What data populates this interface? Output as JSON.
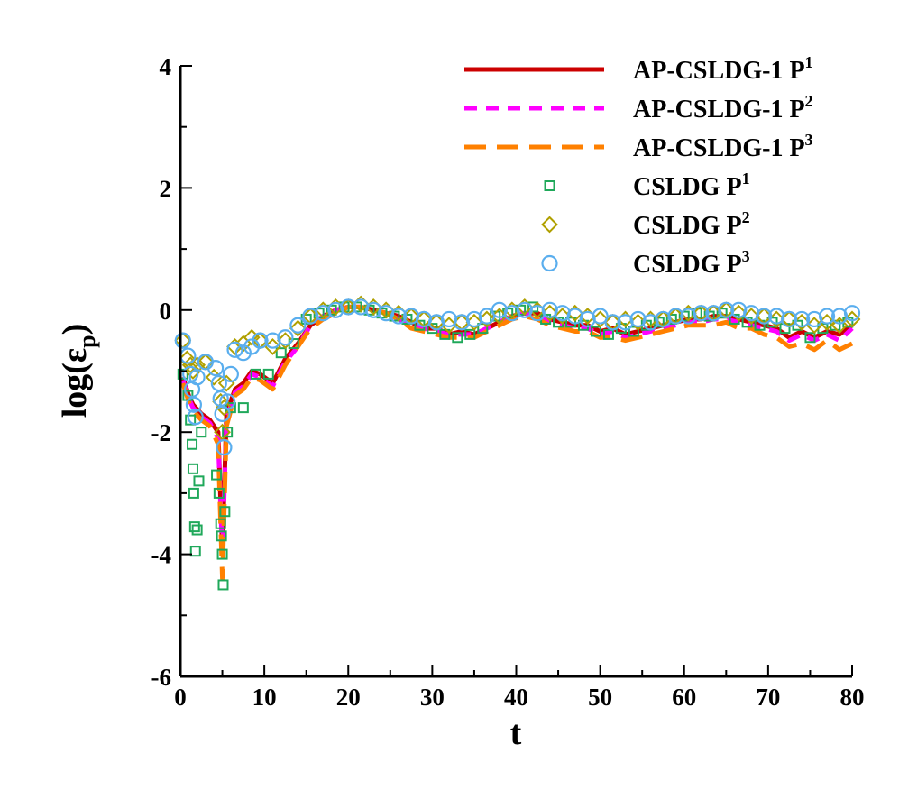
{
  "chart_data": {
    "type": "line",
    "title": "",
    "xlabel": "t",
    "ylabel": "log(εp)",
    "ylabel_parts": {
      "prefix": "log(",
      "symbol": "ε",
      "subscript": "p",
      "suffix": ")"
    },
    "xlim": [
      0,
      80
    ],
    "ylim": [
      -6,
      4
    ],
    "x_ticks": [
      0,
      10,
      20,
      30,
      40,
      50,
      60,
      70,
      80
    ],
    "x_tick_labels": [
      "0",
      "10",
      "20",
      "30",
      "40",
      "50",
      "60",
      "70",
      "80"
    ],
    "y_ticks": [
      -6,
      -4,
      -2,
      0,
      2,
      4
    ],
    "y_tick_labels": [
      "-6",
      "-4",
      "-2",
      "0",
      "2",
      "4"
    ],
    "grid": false,
    "legend_position": "top-right",
    "series": [
      {
        "name": "AP-CSLDG-1 P1",
        "label_base": "AP-CSLDG-1 P",
        "label_sup": "1",
        "style": "solid",
        "color": "#cc0000",
        "x": [
          0.3,
          1.0,
          1.5,
          2.5,
          3.5,
          4.5,
          5.0,
          5.5,
          6.5,
          7.5,
          8.5,
          9.5,
          11,
          12.5,
          14,
          15.5,
          17,
          18.5,
          20,
          21.5,
          23,
          24.5,
          26,
          27.5,
          29,
          30.5,
          32,
          33.5,
          35,
          36.5,
          38,
          39.5,
          41,
          42.5,
          44,
          45.5,
          47,
          48.5,
          50,
          51.5,
          53,
          54.5,
          56,
          57.5,
          59,
          60.5,
          62,
          63.5,
          65,
          66.5,
          68,
          69.5,
          71,
          72.5,
          74,
          75.5,
          77,
          78.5,
          80
        ],
        "y": [
          -1.1,
          -1.4,
          -1.55,
          -1.7,
          -1.8,
          -2.0,
          -3.9,
          -1.7,
          -1.3,
          -1.2,
          -1.0,
          -1.05,
          -1.2,
          -0.8,
          -0.55,
          -0.25,
          -0.1,
          0.0,
          0.05,
          0.05,
          0.0,
          -0.05,
          -0.1,
          -0.2,
          -0.3,
          -0.3,
          -0.4,
          -0.35,
          -0.4,
          -0.3,
          -0.2,
          -0.1,
          -0.05,
          -0.05,
          -0.15,
          -0.2,
          -0.25,
          -0.25,
          -0.35,
          -0.3,
          -0.4,
          -0.35,
          -0.3,
          -0.25,
          -0.2,
          -0.15,
          -0.15,
          -0.1,
          -0.1,
          -0.15,
          -0.2,
          -0.25,
          -0.3,
          -0.45,
          -0.35,
          -0.45,
          -0.35,
          -0.4,
          -0.25
        ]
      },
      {
        "name": "AP-CSLDG-1 P2",
        "label_base": "AP-CSLDG-1 P",
        "label_sup": "2",
        "style": "dash",
        "color": "#ff00ff",
        "x": [
          0.3,
          1.0,
          1.5,
          2.5,
          3.5,
          4.5,
          5.0,
          5.5,
          6.5,
          7.5,
          8.5,
          9.5,
          11,
          12.5,
          14,
          15.5,
          17,
          18.5,
          20,
          21.5,
          23,
          24.5,
          26,
          27.5,
          29,
          30.5,
          32,
          33.5,
          35,
          36.5,
          38,
          39.5,
          41,
          42.5,
          44,
          45.5,
          47,
          48.5,
          50,
          51.5,
          53,
          54.5,
          56,
          57.5,
          59,
          60.5,
          62,
          63.5,
          65,
          66.5,
          68,
          69.5,
          71,
          72.5,
          74,
          75.5,
          77,
          78.5,
          80
        ],
        "y": [
          -1.15,
          -1.45,
          -1.6,
          -1.75,
          -1.85,
          -2.1,
          -4.0,
          -1.8,
          -1.35,
          -1.25,
          -1.05,
          -1.1,
          -1.25,
          -0.85,
          -0.6,
          -0.25,
          -0.1,
          0.0,
          0.05,
          0.05,
          0.0,
          -0.05,
          -0.15,
          -0.25,
          -0.3,
          -0.35,
          -0.4,
          -0.4,
          -0.4,
          -0.3,
          -0.2,
          -0.1,
          -0.05,
          -0.1,
          -0.2,
          -0.25,
          -0.3,
          -0.3,
          -0.4,
          -0.35,
          -0.45,
          -0.4,
          -0.35,
          -0.3,
          -0.25,
          -0.2,
          -0.2,
          -0.15,
          -0.15,
          -0.2,
          -0.25,
          -0.3,
          -0.35,
          -0.5,
          -0.4,
          -0.5,
          -0.4,
          -0.5,
          -0.3
        ]
      },
      {
        "name": "AP-CSLDG-1 P3",
        "label_base": "AP-CSLDG-1 P",
        "label_sup": "3",
        "style": "longdash",
        "color": "#ff8000",
        "x": [
          0.3,
          1.0,
          1.5,
          2.5,
          3.5,
          4.5,
          5.0,
          5.5,
          6.5,
          7.5,
          8.5,
          9.5,
          11,
          12.5,
          14,
          15.5,
          17,
          18.5,
          20,
          21.5,
          23,
          24.5,
          26,
          27.5,
          29,
          30.5,
          32,
          33.5,
          35,
          36.5,
          38,
          39.5,
          41,
          42.5,
          44,
          45.5,
          47,
          48.5,
          50,
          51.5,
          53,
          54.5,
          56,
          57.5,
          59,
          60.5,
          62,
          63.5,
          65,
          66.5,
          68,
          69.5,
          71,
          72.5,
          74,
          75.5,
          77,
          78.5,
          80
        ],
        "y": [
          -1.2,
          -1.5,
          -1.65,
          -1.8,
          -1.9,
          -2.2,
          -4.4,
          -1.9,
          -1.4,
          -1.3,
          -1.1,
          -1.15,
          -1.3,
          -0.9,
          -0.6,
          -0.3,
          -0.15,
          -0.05,
          0.05,
          0.05,
          0.0,
          -0.05,
          -0.15,
          -0.3,
          -0.35,
          -0.4,
          -0.45,
          -0.45,
          -0.45,
          -0.35,
          -0.25,
          -0.15,
          -0.1,
          -0.15,
          -0.25,
          -0.3,
          -0.35,
          -0.35,
          -0.45,
          -0.45,
          -0.5,
          -0.45,
          -0.4,
          -0.35,
          -0.3,
          -0.25,
          -0.25,
          -0.25,
          -0.2,
          -0.3,
          -0.3,
          -0.4,
          -0.45,
          -0.6,
          -0.55,
          -0.65,
          -0.5,
          -0.65,
          -0.55
        ]
      },
      {
        "name": "CSLDG P1",
        "label_base": "CSLDG P",
        "label_sup": "1",
        "style": "marker",
        "marker": "square",
        "color": "#1fa85a",
        "x": [
          0.3,
          0.9,
          1.2,
          1.4,
          1.5,
          1.6,
          1.7,
          1.8,
          2.0,
          2.2,
          2.5,
          4.3,
          4.6,
          4.8,
          4.9,
          5.0,
          5.1,
          5.3,
          5.6,
          6.0,
          7.5,
          9.0,
          10.5,
          12.0,
          13.5,
          15,
          16.5,
          18,
          19.5,
          21,
          22.5,
          24,
          25.5,
          27,
          28.5,
          30,
          31.5,
          33,
          34.5,
          36,
          37.5,
          39,
          40.5,
          42,
          43.5,
          45,
          46.5,
          48,
          49.5,
          51,
          52.5,
          54,
          55.5,
          57,
          58.5,
          60,
          61.5,
          63,
          64.5,
          66,
          67.5,
          69,
          70.5,
          72,
          73.5,
          75,
          76.5,
          78,
          79.5
        ],
        "y": [
          -1.05,
          -1.4,
          -1.8,
          -2.2,
          -2.6,
          -3.0,
          -3.55,
          -3.95,
          -3.6,
          -2.8,
          -2.0,
          -2.7,
          -3.0,
          -3.5,
          -3.7,
          -4.0,
          -4.5,
          -3.3,
          -2.0,
          -1.6,
          -1.6,
          -1.05,
          -1.05,
          -0.7,
          -0.55,
          -0.15,
          -0.05,
          0.0,
          0.05,
          0.05,
          0.0,
          -0.05,
          -0.1,
          -0.15,
          -0.25,
          -0.3,
          -0.4,
          -0.45,
          -0.4,
          -0.3,
          -0.1,
          -0.05,
          0.0,
          0.05,
          -0.15,
          -0.2,
          -0.2,
          -0.25,
          -0.35,
          -0.4,
          -0.3,
          -0.35,
          -0.25,
          -0.2,
          -0.15,
          -0.1,
          -0.05,
          -0.1,
          -0.05,
          -0.15,
          -0.2,
          -0.25,
          -0.2,
          -0.3,
          -0.25,
          -0.45,
          -0.3,
          -0.25,
          -0.2
        ]
      },
      {
        "name": "CSLDG P2",
        "label_base": "CSLDG P",
        "label_sup": "2",
        "style": "marker",
        "marker": "diamond",
        "color": "#b0a000",
        "x": [
          0.3,
          0.8,
          1.2,
          1.5,
          2.0,
          3.0,
          4.0,
          4.8,
          5.0,
          5.2,
          5.5,
          6.5,
          7.5,
          8.5,
          9.5,
          11.0,
          12.5,
          14,
          15.5,
          17,
          18.5,
          20,
          21.5,
          23,
          24.5,
          26,
          27.5,
          29,
          30.5,
          32,
          33.5,
          35,
          36.5,
          38,
          39.5,
          41,
          42.5,
          44,
          45.5,
          47,
          48.5,
          50,
          51.5,
          53,
          54.5,
          56,
          57.5,
          59,
          60.5,
          62,
          63.5,
          65,
          66.5,
          68,
          69.5,
          71,
          72.5,
          74,
          75.5,
          77,
          78.5,
          80
        ],
        "y": [
          -0.5,
          -0.8,
          -0.9,
          -1.0,
          -0.9,
          -0.85,
          -1.1,
          -1.5,
          -2.0,
          -1.6,
          -1.2,
          -0.6,
          -0.55,
          -0.45,
          -0.5,
          -0.6,
          -0.5,
          -0.3,
          -0.1,
          0.0,
          0.05,
          0.05,
          0.1,
          0.05,
          0.0,
          -0.05,
          -0.1,
          -0.15,
          -0.2,
          -0.25,
          -0.2,
          -0.2,
          -0.15,
          -0.1,
          0.0,
          0.05,
          0.0,
          -0.05,
          -0.1,
          -0.05,
          -0.1,
          -0.15,
          -0.2,
          -0.15,
          -0.2,
          -0.15,
          -0.15,
          -0.1,
          -0.05,
          -0.05,
          -0.05,
          0.0,
          -0.05,
          -0.1,
          -0.1,
          -0.15,
          -0.15,
          -0.2,
          -0.25,
          -0.2,
          -0.25,
          -0.15
        ]
      },
      {
        "name": "CSLDG P3",
        "label_base": "CSLDG P",
        "label_sup": "3",
        "style": "marker",
        "marker": "circle",
        "color": "#5aaeee",
        "x": [
          0.3,
          0.9,
          1.2,
          1.4,
          1.6,
          1.8,
          2.0,
          3.0,
          4.2,
          4.6,
          4.8,
          5.0,
          5.2,
          5.6,
          6.0,
          6.5,
          7.5,
          8.5,
          9.5,
          11.0,
          12.5,
          14,
          15.5,
          17,
          18.5,
          20,
          21.5,
          23,
          24.5,
          26,
          27.5,
          29,
          30.5,
          32,
          33.5,
          35,
          36.5,
          38,
          39.5,
          41,
          42.5,
          44,
          45.5,
          47,
          48.5,
          50,
          51.5,
          53,
          54.5,
          56,
          57.5,
          59,
          60.5,
          62,
          63.5,
          65,
          66.5,
          68,
          69.5,
          71,
          72.5,
          74,
          75.5,
          77,
          78.5,
          80
        ],
        "y": [
          -0.5,
          -0.75,
          -1.05,
          -1.3,
          -1.55,
          -1.75,
          -1.1,
          -0.85,
          -0.95,
          -1.2,
          -1.45,
          -1.7,
          -2.25,
          -1.5,
          -1.05,
          -0.65,
          -0.7,
          -0.6,
          -0.5,
          -0.5,
          -0.45,
          -0.25,
          -0.1,
          -0.05,
          0.0,
          0.05,
          0.05,
          0.0,
          -0.05,
          -0.1,
          -0.1,
          -0.15,
          -0.2,
          -0.15,
          -0.2,
          -0.15,
          -0.1,
          0.0,
          -0.05,
          0.0,
          -0.05,
          0.0,
          -0.05,
          -0.1,
          -0.15,
          -0.1,
          -0.2,
          -0.2,
          -0.15,
          -0.2,
          -0.15,
          -0.1,
          -0.1,
          -0.05,
          -0.05,
          0.0,
          0.0,
          -0.05,
          -0.1,
          -0.1,
          -0.15,
          -0.15,
          -0.15,
          -0.1,
          -0.1,
          -0.05
        ]
      }
    ]
  }
}
